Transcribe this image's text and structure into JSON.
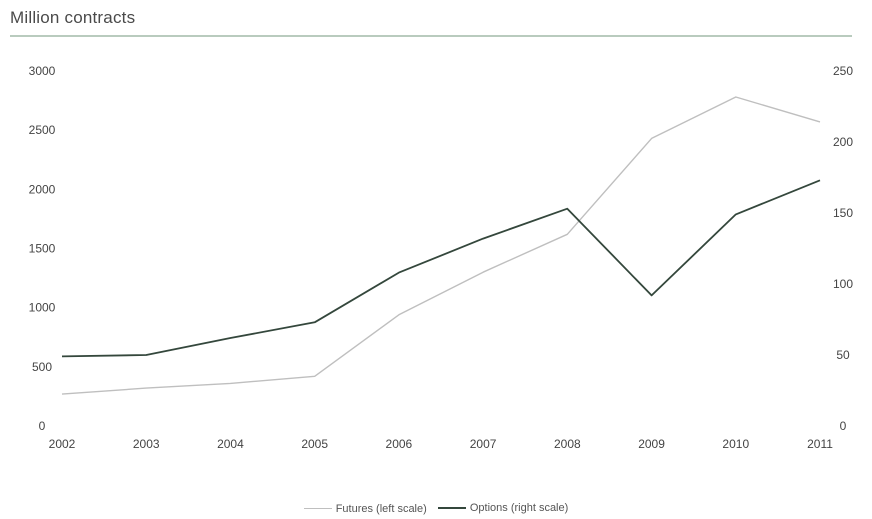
{
  "header": {
    "title": "Million contracts"
  },
  "colors": {
    "futures": "#bfbfbf",
    "options": "#34473c",
    "rule": "#b9cbbe",
    "text": "#444444"
  },
  "chart_data": {
    "type": "line",
    "title": "Million contracts",
    "x": [
      "2002",
      "2003",
      "2004",
      "2005",
      "2006",
      "2007",
      "2008",
      "2009",
      "2010",
      "2011"
    ],
    "series": [
      {
        "name": "Futures (left scale)",
        "axis": "left",
        "values": [
          270,
          320,
          360,
          420,
          940,
          1300,
          1620,
          2430,
          2780,
          2570
        ]
      },
      {
        "name": "Options (right scale)",
        "axis": "right",
        "values": [
          49,
          50,
          62,
          73,
          108,
          132,
          153,
          92,
          149,
          173
        ]
      }
    ],
    "ylim_left": [
      0,
      3000
    ],
    "yticks_left": [
      0,
      500,
      1000,
      1500,
      2000,
      2500,
      3000
    ],
    "ylim_right": [
      0,
      250
    ],
    "yticks_right": [
      0,
      50,
      100,
      150,
      200,
      250
    ],
    "grid": false,
    "legend": "bottom-center"
  }
}
